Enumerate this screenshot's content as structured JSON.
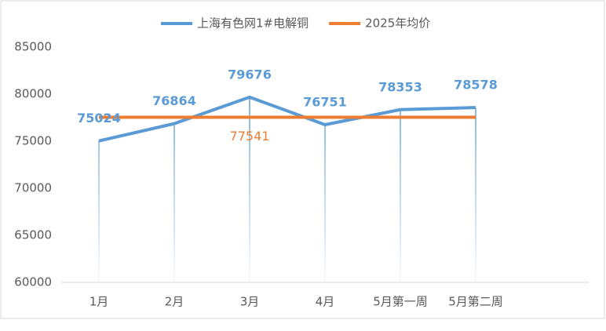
{
  "chart_data": {
    "type": "line",
    "categories": [
      "1月",
      "2月",
      "3月",
      "4月",
      "5月第一周",
      "5月第二周",
      null
    ],
    "series": [
      {
        "name": "上海有色网1#电解铜",
        "color": "#5b9bd5",
        "values": [
          75024,
          76864,
          79676,
          76751,
          78353,
          78578,
          null
        ],
        "data_labels": [
          true,
          true,
          true,
          true,
          true,
          true,
          false
        ],
        "drop_lines": true
      },
      {
        "name": "2025年均价",
        "color": "#ed7d31",
        "values": [
          77541,
          77541,
          77541,
          77541,
          77541,
          77541,
          null
        ],
        "data_labels": [
          false,
          false,
          true,
          false,
          false,
          false,
          false
        ],
        "drop_lines": false
      }
    ],
    "ylim": [
      60000,
      85000
    ],
    "yticks": [
      60000,
      65000,
      70000,
      75000,
      80000,
      85000
    ],
    "grid": false,
    "legend": "top"
  }
}
